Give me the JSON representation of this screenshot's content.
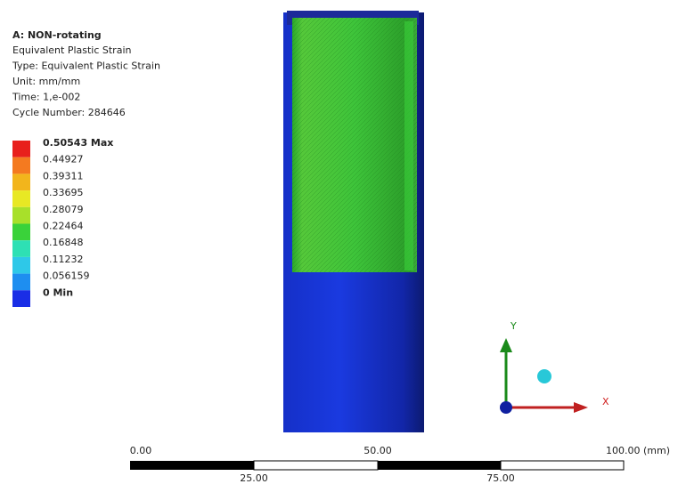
{
  "header": {
    "title": "A: NON-rotating",
    "lines": [
      "Equivalent Plastic Strain",
      "Type: Equivalent Plastic Strain",
      "Unit: mm/mm",
      "Time: 1,e-002",
      "Cycle Number: 284646"
    ]
  },
  "legend": [
    {
      "label": "0.50543 Max",
      "color": "#e8201c"
    },
    {
      "label": "0.44927",
      "color": "#f47a20"
    },
    {
      "label": "0.39311",
      "color": "#f2b51c"
    },
    {
      "label": "0.33695",
      "color": "#e8e824"
    },
    {
      "label": "0.28079",
      "color": "#a8e02a"
    },
    {
      "label": "0.22464",
      "color": "#3ad23a"
    },
    {
      "label": "0.16848",
      "color": "#2ee0b4"
    },
    {
      "label": "0.11232",
      "color": "#2ec8e8"
    },
    {
      "label": "0.056159",
      "color": "#1e8ef0"
    },
    {
      "label": "0 Min",
      "color": "#1a2ee6"
    }
  ],
  "triad": {
    "y": "Y",
    "x": "X"
  },
  "scale_bar": {
    "top": [
      "0.00",
      "50.00",
      "100.00 (mm)"
    ],
    "bottom": [
      "25.00",
      "75.00"
    ]
  }
}
